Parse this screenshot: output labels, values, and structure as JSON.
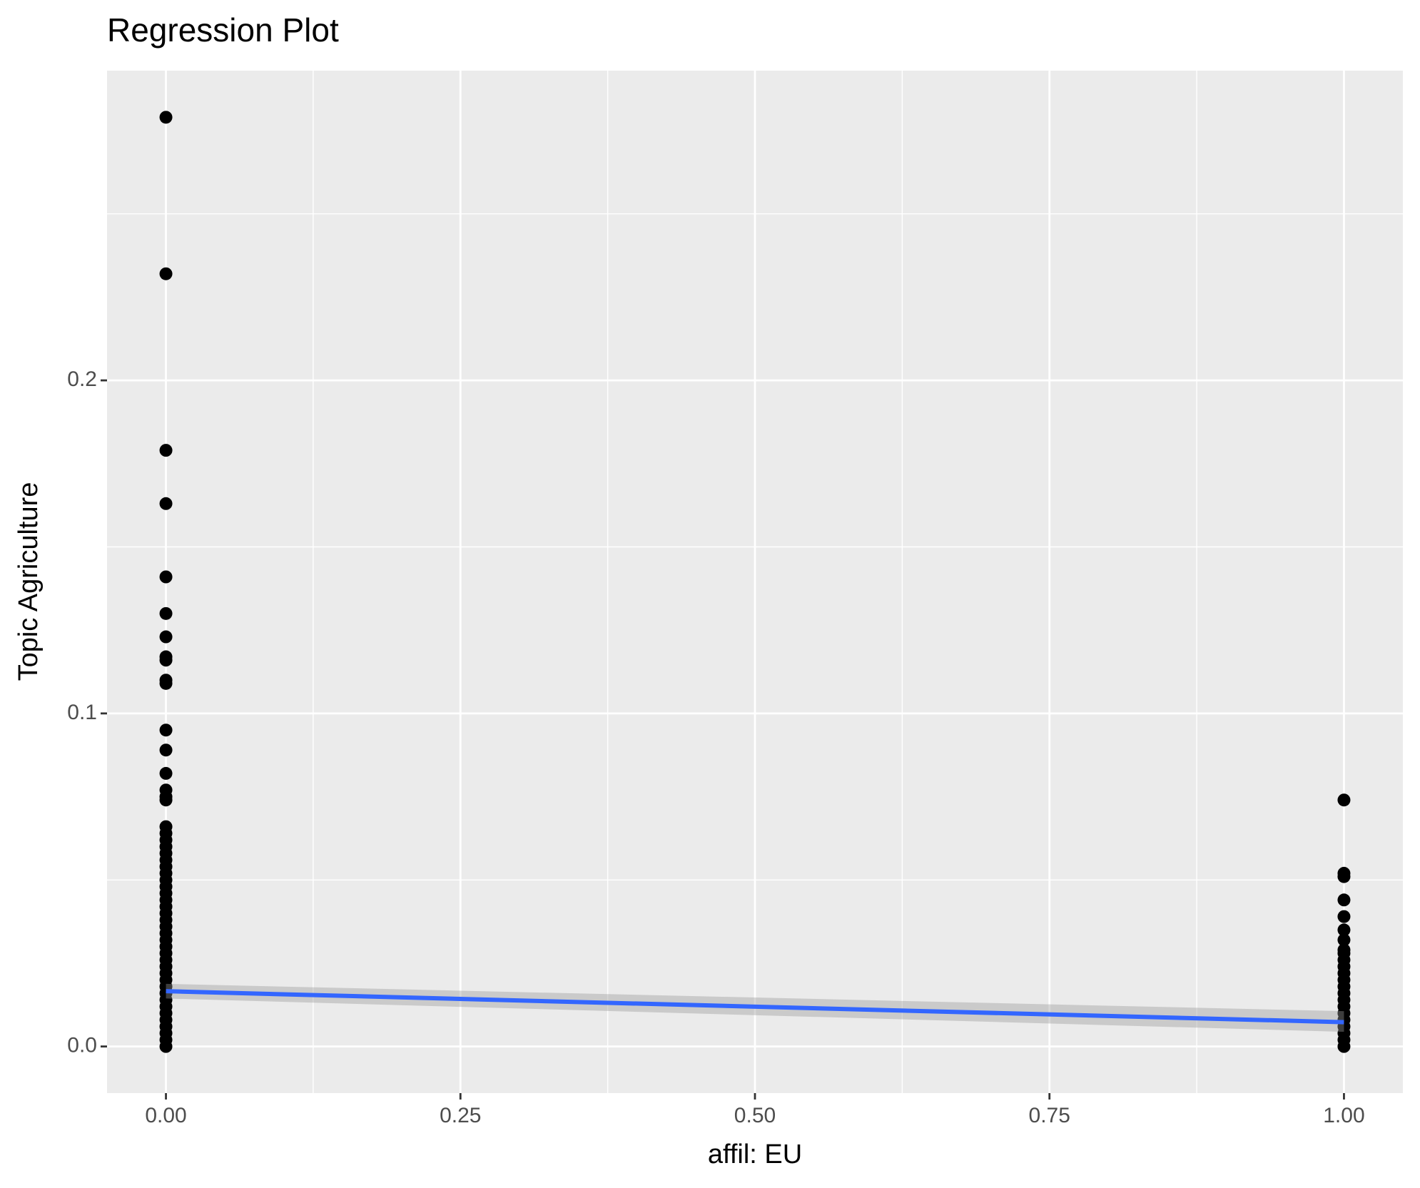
{
  "chart_data": {
    "type": "scatter",
    "title": "Regression Plot",
    "x_label": "affil: EU",
    "y_label": "Topic Agriculture",
    "xlim": [
      -0.05,
      1.05
    ],
    "ylim": [
      -0.014,
      0.293
    ],
    "xticks": [
      {
        "value": 0,
        "label": "0.00"
      },
      {
        "value": 0.25,
        "label": "0.25"
      },
      {
        "value": 0.5,
        "label": "0.50"
      },
      {
        "value": 0.75,
        "label": "0.75"
      },
      {
        "value": 1,
        "label": "1.00"
      }
    ],
    "yticks": [
      {
        "value": 0,
        "label": "0.0"
      },
      {
        "value": 0.1,
        "label": "0.1"
      },
      {
        "value": 0.2,
        "label": "0.2"
      }
    ],
    "xminor": [
      0.125,
      0.375,
      0.625,
      0.875
    ],
    "yminor": [
      0.05,
      0.15,
      0.25
    ],
    "grid": true,
    "point_color": "#000000",
    "series": [
      {
        "x": [
          0,
          0,
          0,
          0,
          0,
          0,
          0,
          0,
          0,
          0,
          0,
          0,
          0,
          0,
          0,
          0,
          0,
          0,
          0,
          0,
          0,
          0,
          0,
          0,
          0,
          0,
          0,
          0,
          0,
          0,
          0,
          0,
          0,
          0,
          0,
          0,
          0,
          0,
          0,
          0,
          0,
          0,
          0,
          0,
          0,
          0,
          0,
          0,
          0,
          0,
          0
        ],
        "values": [
          0.279,
          0.232,
          0.179,
          0.163,
          0.141,
          0.13,
          0.123,
          0.117,
          0.116,
          0.11,
          0.109,
          0.095,
          0.089,
          0.082,
          0.077,
          0.075,
          0.074,
          0.066,
          0.064,
          0.062,
          0.06,
          0.058,
          0.056,
          0.054,
          0.052,
          0.05,
          0.048,
          0.046,
          0.044,
          0.042,
          0.04,
          0.038,
          0.036,
          0.034,
          0.032,
          0.03,
          0.028,
          0.026,
          0.024,
          0.022,
          0.02,
          0.018,
          0.016,
          0.014,
          0.012,
          0.01,
          0.008,
          0.006,
          0.004,
          0.002,
          0
        ]
      },
      {
        "x": [
          1,
          1,
          1,
          1,
          1,
          1,
          1,
          1,
          1,
          1,
          1,
          1,
          1,
          1,
          1,
          1,
          1,
          1,
          1,
          1,
          1,
          1,
          1
        ],
        "values": [
          0.074,
          0.052,
          0.051,
          0.044,
          0.039,
          0.035,
          0.032,
          0.029,
          0.028,
          0.026,
          0.024,
          0.022,
          0.02,
          0.018,
          0.016,
          0.014,
          0.012,
          0.01,
          0.008,
          0.006,
          0.004,
          0.002,
          0
        ]
      }
    ],
    "fit": {
      "color": "#3366FF",
      "x": [
        0,
        1
      ],
      "values": [
        0.0166,
        0.0073
      ],
      "ci_lower": [
        0.0144,
        0.0044
      ],
      "ci_upper": [
        0.0188,
        0.0106
      ],
      "ci_color": "#999999"
    }
  }
}
